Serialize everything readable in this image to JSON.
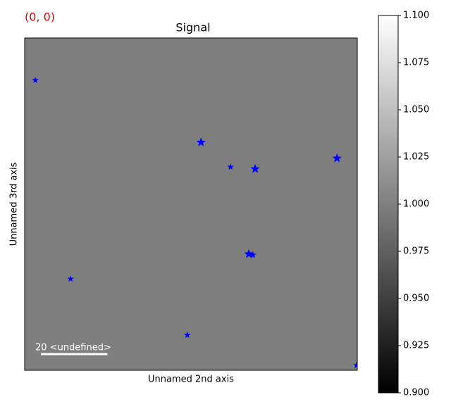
{
  "chart_data": {
    "type": "scatter",
    "title": "Signal",
    "corner_label": "(0, 0)",
    "xlabel": "Unnamed 2nd axis",
    "ylabel": "Unnamed 3rd axis",
    "x": [
      3.2,
      53.0,
      61.9,
      69.3,
      93.9,
      67.4,
      68.6,
      13.8,
      48.9,
      99.8
    ],
    "y": [
      12.7,
      31.4,
      38.8,
      39.4,
      36.2,
      65.0,
      65.3,
      72.5,
      89.4,
      98.5
    ],
    "sizes": [
      10,
      14,
      10,
      14,
      14,
      14,
      11,
      10,
      10,
      10
    ],
    "marker_color": "#0000ff",
    "xlim": [
      0,
      100
    ],
    "ylim": [
      0,
      100
    ],
    "image_value": 1.0,
    "scalebar": {
      "label": "20 <undefined>",
      "length": 20
    },
    "clim": [
      0.9,
      1.1
    ],
    "cticks": [
      {
        "value": 0.9,
        "label": "0.900"
      },
      {
        "value": 0.925,
        "label": "0.925"
      },
      {
        "value": 0.95,
        "label": "0.950"
      },
      {
        "value": 0.975,
        "label": "0.975"
      },
      {
        "value": 1.0,
        "label": "1.000"
      },
      {
        "value": 1.025,
        "label": "1.025"
      },
      {
        "value": 1.05,
        "label": "1.050"
      },
      {
        "value": 1.075,
        "label": "1.075"
      },
      {
        "value": 1.1,
        "label": "1.100"
      }
    ]
  }
}
